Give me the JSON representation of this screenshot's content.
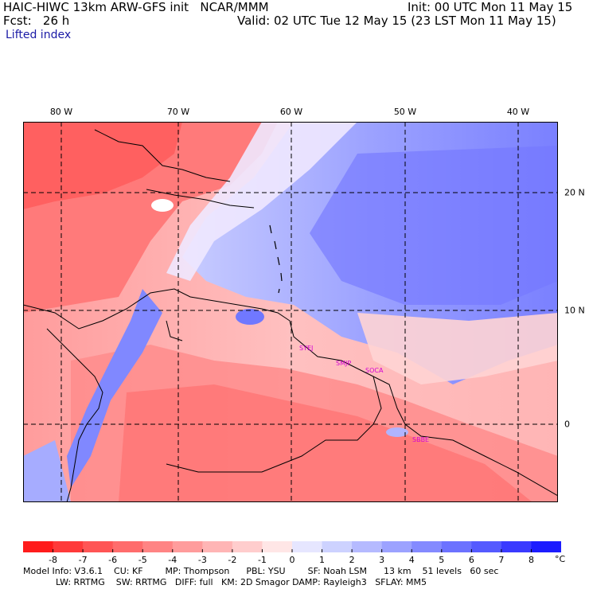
{
  "header": {
    "title": "HAIC-HIWC 13km ARW-GFS init   NCAR/MMM",
    "forecast": "Fcst:   26 h",
    "init": "Init: 00 UTC Mon 11 May 15",
    "valid": "Valid: 02 UTC Tue 12 May 15 (23 LST Mon 11 May 15)",
    "field": "Lifted index"
  },
  "axes": {
    "longitudes": [
      "80 W",
      "70 W",
      "60 W",
      "50 W",
      "40 W"
    ],
    "latitudes": [
      "20 N",
      "10 N",
      "0"
    ]
  },
  "stations": [
    "SYEJ",
    "SMJP",
    "SOCA",
    "SBBE"
  ],
  "colorbar": {
    "ticks": [
      "-8",
      "-7",
      "-6",
      "-5",
      "-4",
      "-3",
      "-2",
      "-1",
      "0",
      "1",
      "2",
      "3",
      "4",
      "5",
      "6",
      "7",
      "8"
    ],
    "unit": "°C",
    "colors": [
      "#ff1c1c",
      "#ff3a3a",
      "#ff5555",
      "#ff6c6c",
      "#ff8484",
      "#ff9c9c",
      "#ffb5b5",
      "#ffcdcd",
      "#ffe6e6",
      "#e6e6ff",
      "#cdd2ff",
      "#b5baff",
      "#9ca2ff",
      "#848aff",
      "#6c72ff",
      "#555aff",
      "#3a3aff",
      "#1c1cff"
    ]
  },
  "model_info": {
    "line1": "Model Info: V3.6.1    CU: KF        MP: Thompson      PBL: YSU        SF: Noah LSM      13 km    51 levels   60 sec",
    "line2": "LW: RRTMG    SW: RRTMG   DIFF: full   KM: 2D Smagor DAMP: Rayleigh3   SFLAY: MM5"
  },
  "colors": {
    "station_label": "#d400d4",
    "coastline": "#000000",
    "grid": "#000000"
  }
}
